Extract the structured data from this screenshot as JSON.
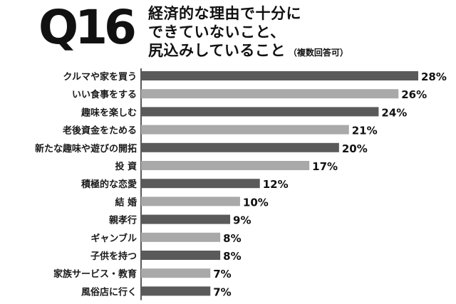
{
  "question": {
    "number": "Q16"
  },
  "title": {
    "line1": "経済的な理由で十分に",
    "line2": "できていないこと、",
    "line3": "尻込みしていること",
    "note": "（複数回答可）"
  },
  "chart_data": {
    "type": "bar",
    "orientation": "horizontal",
    "title": "経済的な理由で十分にできていないこと、尻込みしていること（複数回答可）",
    "categories": [
      "クルマや家を買う",
      "いい食事をする",
      "趣味を楽しむ",
      "老後資金をためる",
      "新たな趣味や遊びの開拓",
      "投 資",
      "積極的な恋愛",
      "結 婚",
      "親孝行",
      "ギャンブル",
      "子供を持つ",
      "家族サービス・教育",
      "風俗店に行く"
    ],
    "values": [
      28,
      26,
      24,
      21,
      20,
      17,
      12,
      10,
      9,
      8,
      8,
      7,
      7
    ],
    "value_labels": [
      "28%",
      "26%",
      "24%",
      "21%",
      "20%",
      "17%",
      "12%",
      "10%",
      "9%",
      "8%",
      "8%",
      "7%",
      "7%"
    ],
    "unit": "%",
    "bar_colors": [
      "#5a5a5a",
      "#a9a9a9"
    ],
    "grid": false,
    "legend": "none"
  }
}
